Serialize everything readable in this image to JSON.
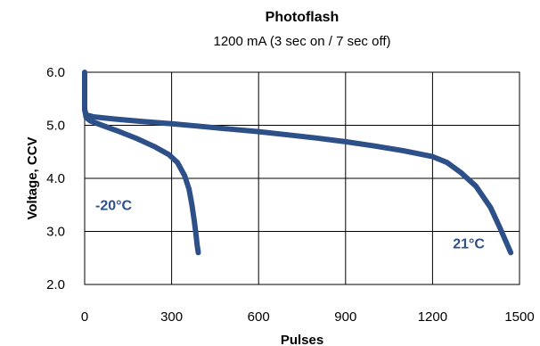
{
  "chart_data": {
    "type": "line",
    "title": "Photoflash",
    "subtitle": "1200 mA (3 sec on / 7 sec off)",
    "xlabel": "Pulses",
    "ylabel": "Voltage, CCV",
    "xlim": [
      0,
      1500
    ],
    "ylim": [
      2.0,
      6.0
    ],
    "xticks": [
      "0",
      "300",
      "600",
      "900",
      "1200",
      "1500"
    ],
    "yticks": [
      "2.0",
      "3.0",
      "4.0",
      "5.0",
      "6.0"
    ],
    "xtick_values": [
      0,
      300,
      600,
      900,
      1200,
      1500
    ],
    "ytick_values": [
      2.0,
      3.0,
      4.0,
      5.0,
      6.0
    ],
    "grid": true,
    "line_color": "#2e5088",
    "series": [
      {
        "name": "-20°C",
        "x": [
          0,
          0,
          5,
          20,
          60,
          120,
          180,
          240,
          290,
          320,
          345,
          360,
          370,
          378,
          384,
          388,
          392
        ],
        "y": [
          6.0,
          5.3,
          5.15,
          5.08,
          5.0,
          4.88,
          4.75,
          4.6,
          4.45,
          4.3,
          4.05,
          3.8,
          3.5,
          3.2,
          2.95,
          2.75,
          2.6
        ]
      },
      {
        "name": "21°C",
        "x": [
          0,
          5,
          30,
          100,
          200,
          300,
          400,
          500,
          600,
          700,
          800,
          900,
          1000,
          1100,
          1200,
          1250,
          1300,
          1350,
          1400,
          1430,
          1450,
          1470
        ],
        "y": [
          5.3,
          5.2,
          5.16,
          5.12,
          5.07,
          5.03,
          4.98,
          4.93,
          4.88,
          4.82,
          4.76,
          4.69,
          4.61,
          4.52,
          4.41,
          4.3,
          4.1,
          3.85,
          3.45,
          3.1,
          2.85,
          2.6
        ]
      }
    ],
    "annotations": [
      {
        "text": "-20°C",
        "x": 100,
        "y": 3.4
      },
      {
        "text": "21°C",
        "x": 1325,
        "y": 2.68
      }
    ]
  }
}
